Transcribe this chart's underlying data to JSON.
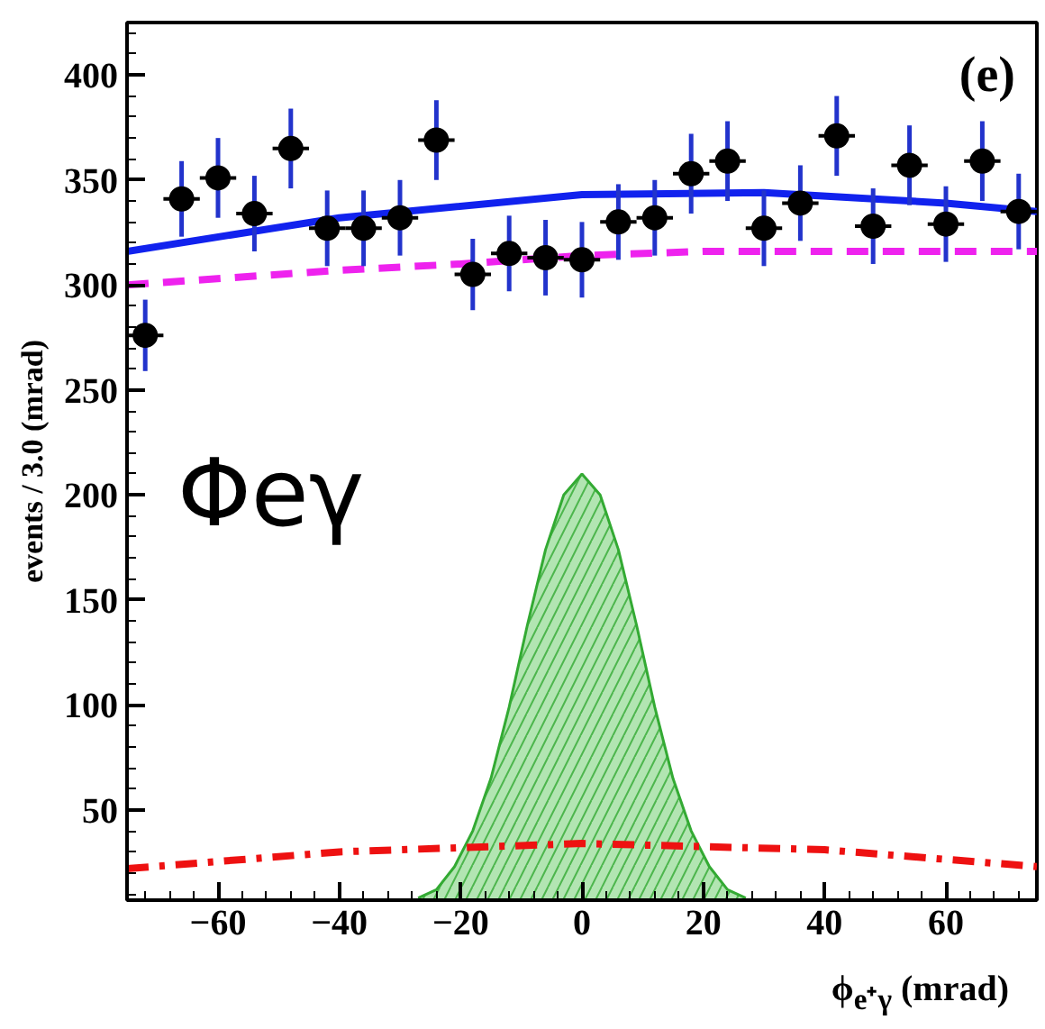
{
  "chart_data": {
    "type": "scatter",
    "xlabel": "ϕ$_{e⁺γ}$ (mrad)",
    "ylabel": "events / 3.0 (mrad)",
    "annotations": [
      "(e)",
      "Φeγ"
    ],
    "xlim": [
      -75,
      75
    ],
    "ylim": [
      7,
      425
    ],
    "xticks": [
      -60,
      -40,
      -20,
      0,
      20,
      40,
      60
    ],
    "yticks": [
      50,
      100,
      150,
      200,
      250,
      300,
      350,
      400
    ],
    "grid": false,
    "series": [
      {
        "type": "area",
        "color": "#66cc66",
        "x": [
          -27,
          -24,
          -21,
          -18,
          -15,
          -12,
          -9,
          -6,
          -3,
          0,
          3,
          6,
          9,
          12,
          15,
          18,
          21,
          24,
          27
        ],
        "values": [
          8,
          12,
          23,
          40,
          65,
          99,
          138,
          174,
          200,
          210,
          200,
          174,
          138,
          99,
          65,
          40,
          23,
          12,
          8
        ]
      },
      {
        "type": "line",
        "color": "#ee1111",
        "line_style": "dashdot",
        "x": [
          -75,
          -40,
          0,
          40,
          75
        ],
        "values": [
          22,
          30,
          34,
          31,
          23
        ]
      },
      {
        "type": "line",
        "color": "#ee22ee",
        "line_style": "dashed",
        "x": [
          -75,
          -40,
          -20,
          0,
          20,
          75
        ],
        "values": [
          300,
          307,
          310,
          314,
          316,
          316
        ]
      },
      {
        "type": "line",
        "color": "#1122ee",
        "line_style": "solid",
        "x": [
          -75,
          -40,
          0,
          30,
          60,
          75
        ],
        "values": [
          316,
          332,
          343,
          344,
          339,
          335
        ]
      },
      {
        "color": "#000000",
        "marker": "circle",
        "xerrors": [
          3,
          3,
          3,
          3,
          3,
          3,
          3,
          3,
          3,
          3,
          3,
          3,
          3,
          3,
          3,
          3,
          3,
          3,
          3,
          3,
          3,
          3,
          3,
          3,
          3
        ],
        "x": [
          -72,
          -66,
          -60,
          -54,
          -48,
          -42,
          -36,
          -30,
          -24,
          -18,
          -12,
          -6,
          0,
          6,
          12,
          18,
          24,
          30,
          36,
          42,
          48,
          54,
          60,
          66,
          72
        ],
        "values": [
          276,
          341,
          351,
          334,
          365,
          327,
          327,
          332,
          369,
          305,
          315,
          313,
          312,
          330,
          332,
          353,
          359,
          327,
          339,
          371,
          328,
          357,
          329,
          359,
          335
        ],
        "errors": [
          17,
          18,
          19,
          18,
          19,
          18,
          18,
          18,
          19,
          17,
          18,
          18,
          18,
          18,
          18,
          19,
          19,
          18,
          18,
          19,
          18,
          19,
          18,
          19,
          18
        ]
      }
    ]
  }
}
